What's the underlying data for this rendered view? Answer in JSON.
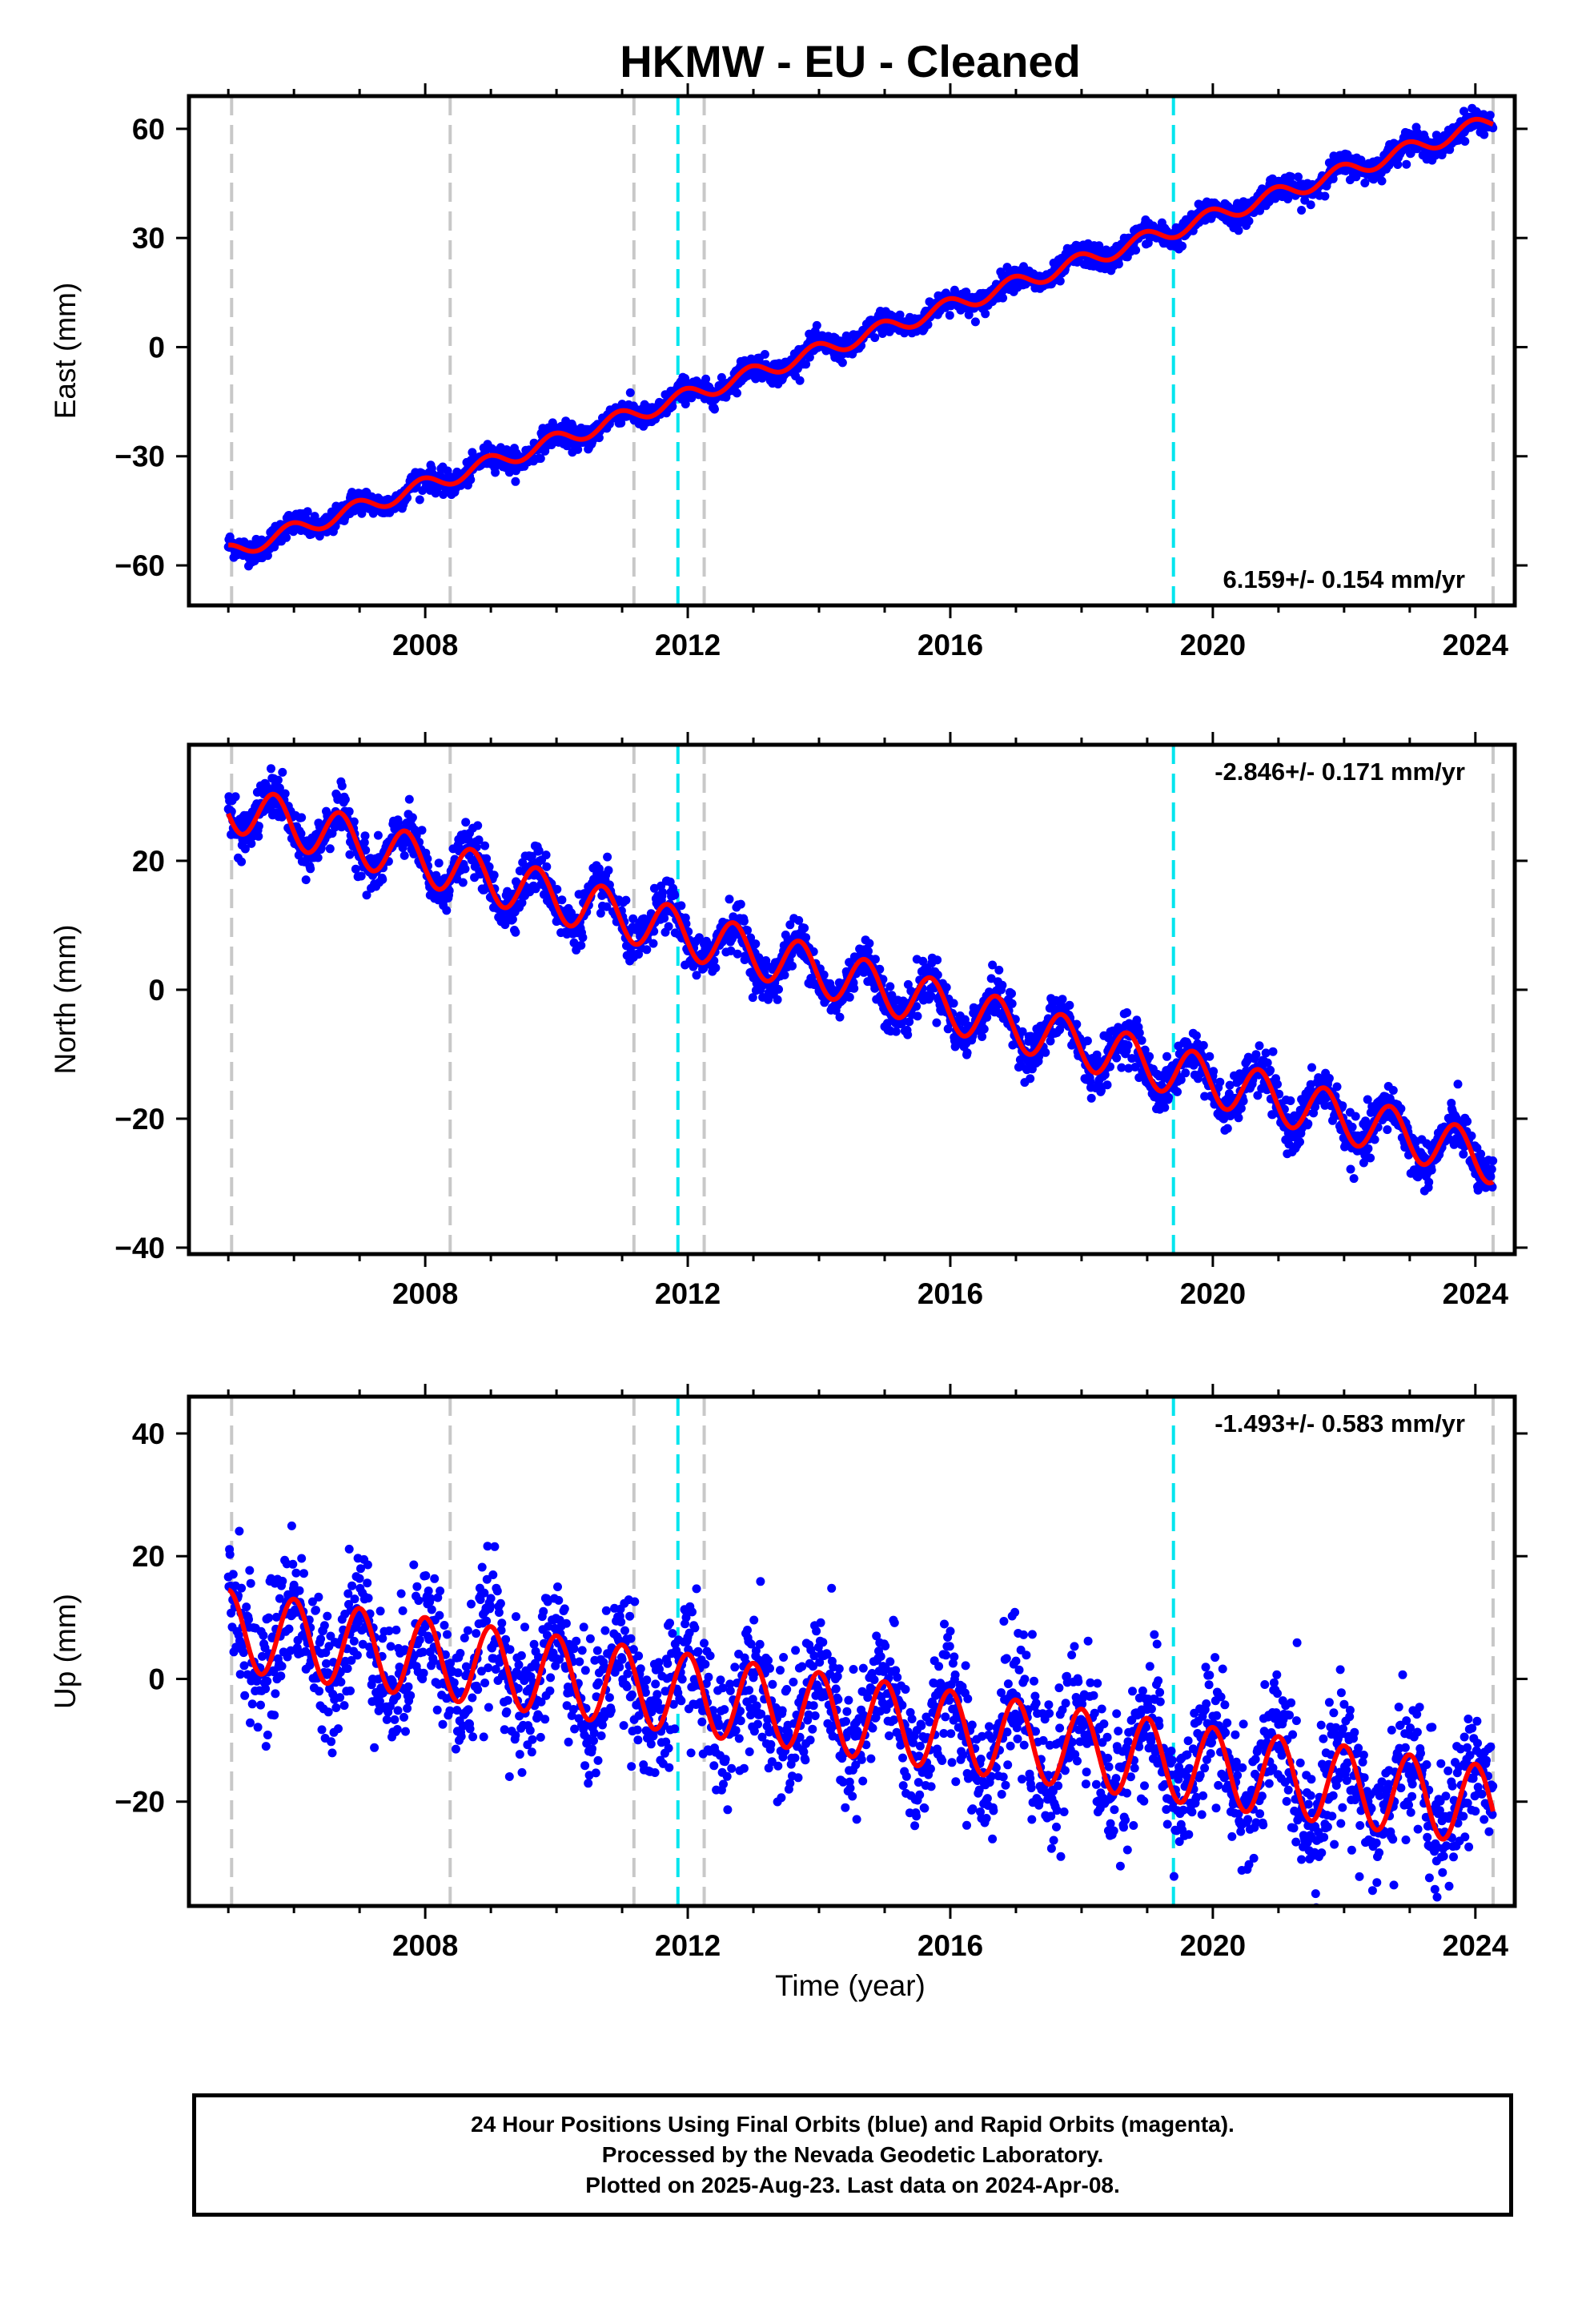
{
  "title": "HKMW  - EU - Cleaned",
  "x_axis_title": "Time (year)",
  "footer": {
    "line1": "24 Hour Positions Using Final Orbits (blue) and Rapid Orbits (magenta).",
    "line2": "Processed by the Nevada Geodetic Laboratory.",
    "line3": "Plotted on 2025-Aug-23. Last data on 2024-Apr-08."
  },
  "colors": {
    "data_points": "#0000ff",
    "model_line": "#ff0000",
    "equipment_change_lines": "#c8c8c8",
    "earthquake_lines": "#00e5ee"
  },
  "chart_data": [
    {
      "type": "scatter",
      "panel": "east",
      "ylabel": "East (mm)",
      "xlim": [
        2004.4,
        2024.6
      ],
      "ylim": [
        -71,
        69
      ],
      "xticks": [
        2008,
        2012,
        2016,
        2020,
        2024
      ],
      "xtick_labels": [
        "2008",
        "2012",
        "2016",
        "2020",
        "2024"
      ],
      "yticks": [
        -60,
        -30,
        0,
        30,
        60
      ],
      "ytick_labels": [
        "−60",
        "−30",
        "0",
        "30",
        "60"
      ],
      "rate_label": "6.159+/- 0.154 mm/yr",
      "data_start": 2005.0,
      "data_end": 2024.27,
      "model": {
        "intercept_at_2005": -56.5,
        "rate_mm_per_yr": 6.159,
        "annual_amplitude": 2.2,
        "annual_phase": 0.3
      },
      "scatter_noise_mm": 1.6,
      "series": [
        {
          "name": "Final Orbits (blue)",
          "role": "data"
        },
        {
          "name": "Model",
          "role": "fit"
        }
      ]
    },
    {
      "type": "scatter",
      "panel": "north",
      "ylabel": "North (mm)",
      "xlim": [
        2004.4,
        2024.6
      ],
      "ylim": [
        -41,
        38
      ],
      "xticks": [
        2008,
        2012,
        2016,
        2020,
        2024
      ],
      "xtick_labels": [
        "2008",
        "2012",
        "2016",
        "2020",
        "2024"
      ],
      "yticks": [
        -40,
        -20,
        0,
        20
      ],
      "ytick_labels": [
        "−40",
        "−20",
        "0",
        "20"
      ],
      "rate_label": "-2.846+/- 0.171 mm/yr",
      "data_start": 2005.0,
      "data_end": 2024.27,
      "model": {
        "intercept_at_2005": 28.5,
        "rate_mm_per_yr": -2.846,
        "annual_amplitude": 3.8,
        "annual_phase": 0.55
      },
      "scatter_noise_mm": 1.8,
      "series": [
        {
          "name": "Final Orbits (blue)",
          "role": "data"
        },
        {
          "name": "Model",
          "role": "fit"
        }
      ]
    },
    {
      "type": "scatter",
      "panel": "up",
      "ylabel": "Up (mm)",
      "xlim": [
        2004.4,
        2024.6
      ],
      "ylim": [
        -37,
        46
      ],
      "xticks": [
        2008,
        2012,
        2016,
        2020,
        2024
      ],
      "xtick_labels": [
        "2008",
        "2012",
        "2016",
        "2020",
        "2024"
      ],
      "yticks": [
        -20,
        0,
        20,
        40
      ],
      "ytick_labels": [
        "−20",
        "0",
        "20",
        "40"
      ],
      "rate_label": "-1.493+/- 0.583 mm/yr",
      "data_start": 2005.0,
      "data_end": 2024.27,
      "model": {
        "intercept_at_2005": 8.0,
        "rate_mm_per_yr": -1.493,
        "annual_amplitude": 6.5,
        "annual_phase": 0.25
      },
      "scatter_noise_mm": 5.5,
      "series": [
        {
          "name": "Final Orbits (blue)",
          "role": "data"
        },
        {
          "name": "Model",
          "role": "fit"
        }
      ]
    }
  ],
  "reference_lines": {
    "equipment_changes": [
      2005.05,
      2008.38,
      2011.18,
      2012.25,
      2024.27
    ],
    "earthquakes": [
      2011.85,
      2019.4
    ]
  }
}
